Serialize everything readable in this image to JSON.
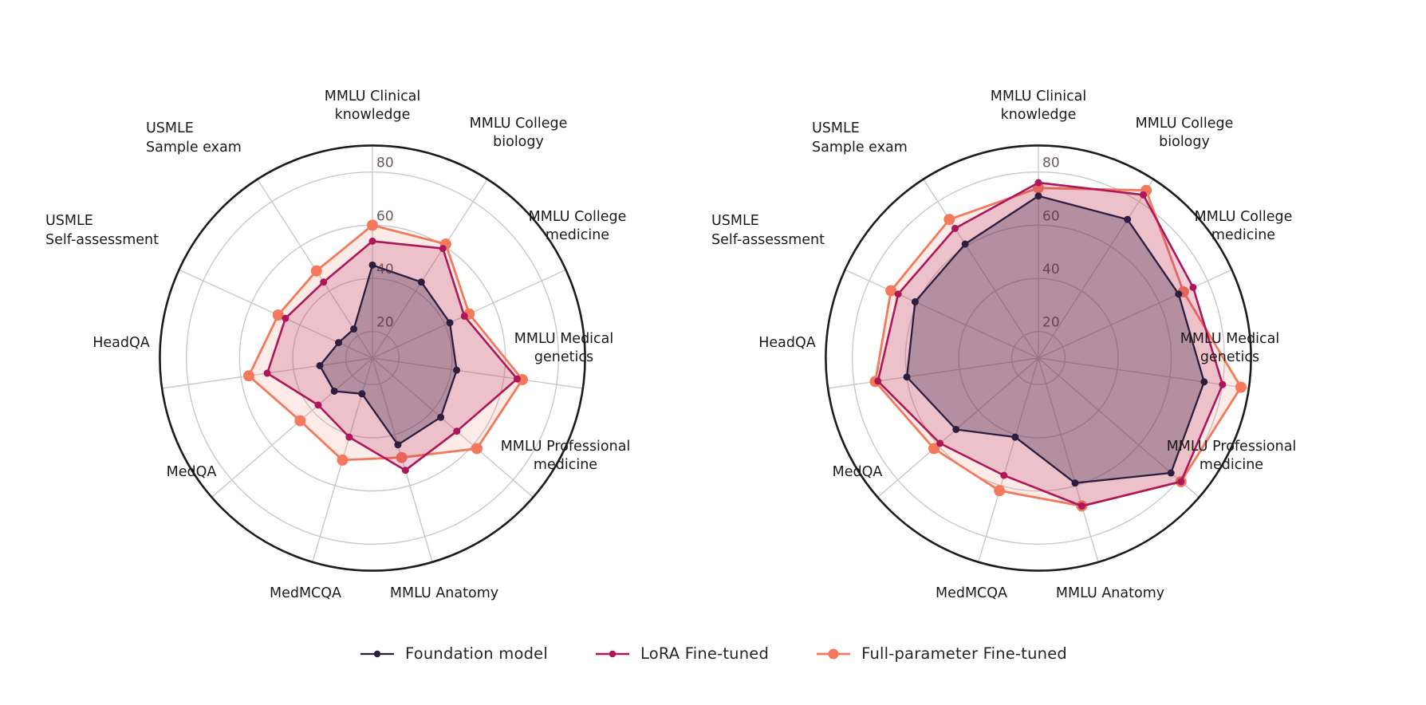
{
  "page": {
    "background": "#ffffff"
  },
  "chart_data": [
    {
      "type": "radar",
      "title": "",
      "position": "left",
      "categories": [
        "MMLU Clinical knowledge",
        "MMLU College biology",
        "MMLU College medicine",
        "MMLU Medical genetics",
        "MMLU Professional medicine",
        "MMLU Anatomy",
        "MedMCQA",
        "MedQA",
        "HeadQA",
        "USMLE Self-assessment",
        "USMLE Sample exam"
      ],
      "category_label_lines": [
        [
          "MMLU Clinical",
          "knowledge"
        ],
        [
          "MMLU College",
          "biology"
        ],
        [
          "MMLU College",
          "medicine"
        ],
        [
          "MMLU Medical",
          "genetics"
        ],
        [
          "MMLU Professional",
          "medicine"
        ],
        [
          "MMLU Anatomy"
        ],
        [
          "MedMCQA"
        ],
        [
          "MedQA"
        ],
        [
          "HeadQA"
        ],
        [
          "USMLE",
          "Self-assessment"
        ],
        [
          "USMLE",
          "Sample exam"
        ]
      ],
      "r_ticks": [
        20,
        40,
        60,
        80
      ],
      "r_center": 10,
      "r_max": 90,
      "grid": true,
      "series": [
        {
          "name": "Foundation model",
          "color": "#2d1e3f",
          "fill": "rgba(45,30,62,0.30)",
          "marker_radius": 4.5,
          "line_width": 2.3,
          "values": [
            45,
            44,
            42,
            42,
            44,
            44,
            24,
            29,
            30,
            24,
            23
          ]
        },
        {
          "name": "LoRA Fine-tuned",
          "color": "#ad1759",
          "fill": "rgba(173,23,89,0.20)",
          "marker_radius": 4.5,
          "line_width": 2.6,
          "values": [
            54,
            59,
            48,
            65,
            52,
            54,
            41,
            37,
            50,
            46,
            44
          ]
        },
        {
          "name": "Full-parameter Fine-tuned",
          "color": "#f4795c",
          "fill": "rgba(244,121,92,0.15)",
          "marker_radius": 7,
          "line_width": 2.8,
          "values": [
            60,
            61,
            50,
            67,
            62,
            49,
            50,
            46,
            57,
            49,
            49
          ]
        }
      ]
    },
    {
      "type": "radar",
      "title": "",
      "position": "right",
      "categories": [
        "MMLU Clinical knowledge",
        "MMLU College biology",
        "MMLU College medicine",
        "MMLU Medical genetics",
        "MMLU Professional medicine",
        "MMLU Anatomy",
        "MedMCQA",
        "MedQA",
        "HeadQA",
        "USMLE Self-assessment",
        "USMLE Sample exam"
      ],
      "category_label_lines": [
        [
          "MMLU Clinical",
          "knowledge"
        ],
        [
          "MMLU College",
          "biology"
        ],
        [
          "MMLU College",
          "medicine"
        ],
        [
          "MMLU Medical",
          "genetics"
        ],
        [
          "MMLU Professional",
          "medicine"
        ],
        [
          "MMLU Anatomy"
        ],
        [
          "MedMCQA"
        ],
        [
          "MedQA"
        ],
        [
          "HeadQA"
        ],
        [
          "USMLE",
          "Self-assessment"
        ],
        [
          "USMLE",
          "Sample exam"
        ]
      ],
      "r_ticks": [
        20,
        40,
        60,
        80
      ],
      "r_center": 10,
      "r_max": 90,
      "grid": true,
      "series": [
        {
          "name": "Foundation model",
          "color": "#2d1e3f",
          "fill": "rgba(45,30,62,0.30)",
          "marker_radius": 4.5,
          "line_width": 2.3,
          "values": [
            71,
            72,
            68,
            73,
            76,
            59,
            41,
            51,
            60,
            61,
            61
          ]
        },
        {
          "name": "LoRA Fine-tuned",
          "color": "#ad1759",
          "fill": "rgba(173,23,89,0.20)",
          "marker_radius": 4.5,
          "line_width": 2.6,
          "values": [
            76,
            83,
            74,
            80,
            81,
            68,
            56,
            59,
            71,
            68,
            68
          ]
        },
        {
          "name": "Full-parameter Fine-tuned",
          "color": "#f4795c",
          "fill": "rgba(244,121,92,0.15)",
          "marker_radius": 7,
          "line_width": 2.8,
          "values": [
            74,
            85,
            70,
            87,
            81,
            68,
            62,
            62,
            72,
            71,
            72
          ]
        }
      ]
    }
  ],
  "legend": {
    "position": "bottom"
  },
  "style": {
    "grid_color": "#c9c9c9",
    "boundary_color": "#1c1c1c",
    "tick_label_color": "#6a5c5c",
    "category_label_color": "#1a1a1a"
  }
}
